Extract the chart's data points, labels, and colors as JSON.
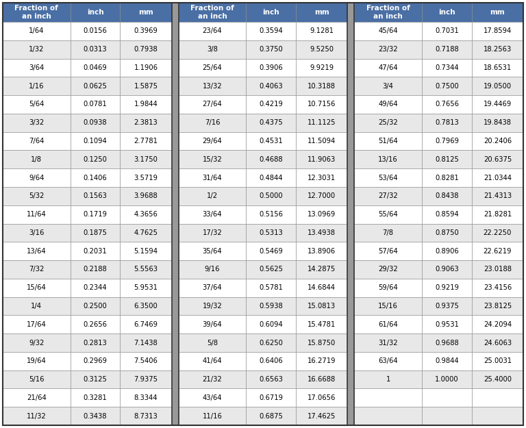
{
  "header_bg": "#4a6fa5",
  "header_text_color": "#ffffff",
  "row_bg_even": "#ffffff",
  "row_bg_odd": "#e8e8e8",
  "border_color": "#888888",
  "separator_color": "#999999",
  "data_col1": [
    [
      "1/64",
      "0.0156",
      "0.3969"
    ],
    [
      "1/32",
      "0.0313",
      "0.7938"
    ],
    [
      "3/64",
      "0.0469",
      "1.1906"
    ],
    [
      "1/16",
      "0.0625",
      "1.5875"
    ],
    [
      "5/64",
      "0.0781",
      "1.9844"
    ],
    [
      "3/32",
      "0.0938",
      "2.3813"
    ],
    [
      "7/64",
      "0.1094",
      "2.7781"
    ],
    [
      "1/8",
      "0.1250",
      "3.1750"
    ],
    [
      "9/64",
      "0.1406",
      "3.5719"
    ],
    [
      "5/32",
      "0.1563",
      "3.9688"
    ],
    [
      "11/64",
      "0.1719",
      "4.3656"
    ],
    [
      "3/16",
      "0.1875",
      "4.7625"
    ],
    [
      "13/64",
      "0.2031",
      "5.1594"
    ],
    [
      "7/32",
      "0.2188",
      "5.5563"
    ],
    [
      "15/64",
      "0.2344",
      "5.9531"
    ],
    [
      "1/4",
      "0.2500",
      "6.3500"
    ],
    [
      "17/64",
      "0.2656",
      "6.7469"
    ],
    [
      "9/32",
      "0.2813",
      "7.1438"
    ],
    [
      "19/64",
      "0.2969",
      "7.5406"
    ],
    [
      "5/16",
      "0.3125",
      "7.9375"
    ],
    [
      "21/64",
      "0.3281",
      "8.3344"
    ],
    [
      "11/32",
      "0.3438",
      "8.7313"
    ]
  ],
  "data_col2": [
    [
      "23/64",
      "0.3594",
      "9.1281"
    ],
    [
      "3/8",
      "0.3750",
      "9.5250"
    ],
    [
      "25/64",
      "0.3906",
      "9.9219"
    ],
    [
      "13/32",
      "0.4063",
      "10.3188"
    ],
    [
      "27/64",
      "0.4219",
      "10.7156"
    ],
    [
      "7/16",
      "0.4375",
      "11.1125"
    ],
    [
      "29/64",
      "0.4531",
      "11.5094"
    ],
    [
      "15/32",
      "0.4688",
      "11.9063"
    ],
    [
      "31/64",
      "0.4844",
      "12.3031"
    ],
    [
      "1/2",
      "0.5000",
      "12.7000"
    ],
    [
      "33/64",
      "0.5156",
      "13.0969"
    ],
    [
      "17/32",
      "0.5313",
      "13.4938"
    ],
    [
      "35/64",
      "0.5469",
      "13.8906"
    ],
    [
      "9/16",
      "0.5625",
      "14.2875"
    ],
    [
      "37/64",
      "0.5781",
      "14.6844"
    ],
    [
      "19/32",
      "0.5938",
      "15.0813"
    ],
    [
      "39/64",
      "0.6094",
      "15.4781"
    ],
    [
      "5/8",
      "0.6250",
      "15.8750"
    ],
    [
      "41/64",
      "0.6406",
      "16.2719"
    ],
    [
      "21/32",
      "0.6563",
      "16.6688"
    ],
    [
      "43/64",
      "0.6719",
      "17.0656"
    ],
    [
      "11/16",
      "0.6875",
      "17.4625"
    ]
  ],
  "data_col3": [
    [
      "45/64",
      "0.7031",
      "17.8594"
    ],
    [
      "23/32",
      "0.7188",
      "18.2563"
    ],
    [
      "47/64",
      "0.7344",
      "18.6531"
    ],
    [
      "3/4",
      "0.7500",
      "19.0500"
    ],
    [
      "49/64",
      "0.7656",
      "19.4469"
    ],
    [
      "25/32",
      "0.7813",
      "19.8438"
    ],
    [
      "51/64",
      "0.7969",
      "20.2406"
    ],
    [
      "13/16",
      "0.8125",
      "20.6375"
    ],
    [
      "53/64",
      "0.8281",
      "21.0344"
    ],
    [
      "27/32",
      "0.8438",
      "21.4313"
    ],
    [
      "55/64",
      "0.8594",
      "21.8281"
    ],
    [
      "7/8",
      "0.8750",
      "22.2250"
    ],
    [
      "57/64",
      "0.8906",
      "22.6219"
    ],
    [
      "29/32",
      "0.9063",
      "23.0188"
    ],
    [
      "59/64",
      "0.9219",
      "23.4156"
    ],
    [
      "15/16",
      "0.9375",
      "23.8125"
    ],
    [
      "61/64",
      "0.9531",
      "24.2094"
    ],
    [
      "31/32",
      "0.9688",
      "24.6063"
    ],
    [
      "63/64",
      "0.9844",
      "25.0031"
    ],
    [
      "1",
      "1.0000",
      "25.4000"
    ],
    [
      "",
      "",
      ""
    ],
    [
      "",
      "",
      ""
    ]
  ]
}
